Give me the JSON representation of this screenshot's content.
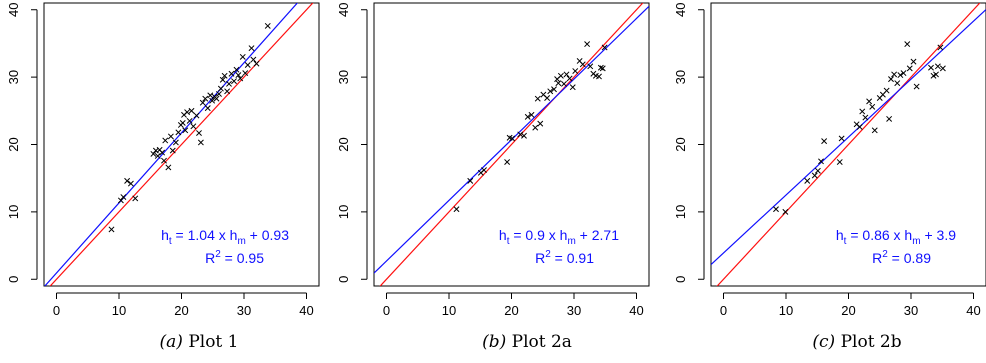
{
  "chart_data": [
    {
      "type": "scatter",
      "caption_label": "(a)",
      "caption_text": "Plot 1",
      "xlim": [
        -2,
        42
      ],
      "ylim": [
        -1,
        41
      ],
      "xticks": [
        0,
        10,
        20,
        30,
        40
      ],
      "yticks": [
        0,
        10,
        20,
        30,
        40
      ],
      "grid": false,
      "marker": "x",
      "points": [
        [
          8.8,
          7.4
        ],
        [
          10.3,
          11.7
        ],
        [
          10.7,
          12.2
        ],
        [
          11.3,
          14.6
        ],
        [
          11.9,
          14.2
        ],
        [
          12.6,
          12.0
        ],
        [
          15.5,
          18.6
        ],
        [
          15.9,
          19.1
        ],
        [
          16.2,
          18.3
        ],
        [
          16.5,
          19.2
        ],
        [
          16.9,
          18.8
        ],
        [
          17.2,
          17.6
        ],
        [
          17.4,
          20.6
        ],
        [
          17.9,
          16.6
        ],
        [
          18.3,
          21.2
        ],
        [
          18.6,
          19.1
        ],
        [
          19.1,
          20.3
        ],
        [
          19.5,
          21.8
        ],
        [
          19.9,
          22.9
        ],
        [
          20.2,
          23.2
        ],
        [
          20.4,
          24.4
        ],
        [
          20.6,
          22.1
        ],
        [
          20.9,
          24.8
        ],
        [
          21.3,
          23.5
        ],
        [
          21.6,
          25.0
        ],
        [
          21.9,
          22.7
        ],
        [
          22.4,
          24.3
        ],
        [
          22.8,
          21.7
        ],
        [
          23.1,
          20.3
        ],
        [
          23.4,
          26.2
        ],
        [
          23.8,
          26.8
        ],
        [
          24.2,
          25.4
        ],
        [
          24.6,
          27.3
        ],
        [
          24.9,
          26.5
        ],
        [
          25.3,
          27.1
        ],
        [
          25.6,
          26.8
        ],
        [
          26.0,
          27.5
        ],
        [
          26.3,
          28.3
        ],
        [
          26.6,
          29.6
        ],
        [
          26.9,
          30.2
        ],
        [
          27.3,
          27.9
        ],
        [
          27.6,
          29.0
        ],
        [
          28.0,
          30.5
        ],
        [
          28.4,
          29.4
        ],
        [
          28.8,
          31.1
        ],
        [
          29.1,
          30.3
        ],
        [
          29.4,
          29.8
        ],
        [
          29.8,
          33.0
        ],
        [
          30.2,
          30.6
        ],
        [
          30.6,
          31.8
        ],
        [
          31.2,
          34.3
        ],
        [
          31.5,
          32.6
        ],
        [
          32.0,
          32.0
        ],
        [
          33.8,
          37.6
        ]
      ],
      "regression": {
        "slope": 1.04,
        "intercept": 0.93
      },
      "identity_line": true,
      "equation": {
        "prefix": "h",
        "sub1": "t",
        "mid": " = 1.04 x h",
        "sub2": "m",
        "suffix": " + 0.93"
      },
      "r2": {
        "label": "R",
        "sup": "2",
        "value": " = 0.95"
      }
    },
    {
      "type": "scatter",
      "caption_label": "(b)",
      "caption_text": "Plot 2a",
      "xlim": [
        -2,
        42
      ],
      "ylim": [
        -1,
        41
      ],
      "xticks": [
        0,
        10,
        20,
        30,
        40
      ],
      "yticks": [
        0,
        10,
        20,
        30,
        40
      ],
      "grid": false,
      "marker": "x",
      "points": [
        [
          11.2,
          10.4
        ],
        [
          13.4,
          14.6
        ],
        [
          15.1,
          15.8
        ],
        [
          15.6,
          16.2
        ],
        [
          19.3,
          17.4
        ],
        [
          19.7,
          21.0
        ],
        [
          20.1,
          20.9
        ],
        [
          21.4,
          21.5
        ],
        [
          22.0,
          21.3
        ],
        [
          22.6,
          24.1
        ],
        [
          23.2,
          24.4
        ],
        [
          23.8,
          22.5
        ],
        [
          24.2,
          26.8
        ],
        [
          24.6,
          23.1
        ],
        [
          25.1,
          27.4
        ],
        [
          25.7,
          26.9
        ],
        [
          26.2,
          27.9
        ],
        [
          26.8,
          28.2
        ],
        [
          27.3,
          29.7
        ],
        [
          27.5,
          29.1
        ],
        [
          27.9,
          30.2
        ],
        [
          28.4,
          29.0
        ],
        [
          28.8,
          30.4
        ],
        [
          29.3,
          29.8
        ],
        [
          29.8,
          28.5
        ],
        [
          30.2,
          30.9
        ],
        [
          30.9,
          32.4
        ],
        [
          31.4,
          31.9
        ],
        [
          32.1,
          34.9
        ],
        [
          32.6,
          31.6
        ],
        [
          33.1,
          30.5
        ],
        [
          33.5,
          30.2
        ],
        [
          34.0,
          30.1
        ],
        [
          34.3,
          31.4
        ],
        [
          34.6,
          31.3
        ],
        [
          34.9,
          34.4
        ]
      ],
      "regression": {
        "slope": 0.9,
        "intercept": 2.71
      },
      "identity_line": true,
      "equation": {
        "prefix": "h",
        "sub1": "t",
        "mid": " = 0.9 x h",
        "sub2": "m",
        "suffix": " + 2.71"
      },
      "r2": {
        "label": "R",
        "sup": "2",
        "value": " = 0.91"
      }
    },
    {
      "type": "scatter",
      "caption_label": "(c)",
      "caption_text": "Plot 2b",
      "xlim": [
        -2,
        42
      ],
      "ylim": [
        -1,
        41
      ],
      "xticks": [
        0,
        10,
        20,
        30,
        40
      ],
      "yticks": [
        0,
        10,
        20,
        30,
        40
      ],
      "grid": false,
      "marker": "x",
      "points": [
        [
          8.4,
          10.4
        ],
        [
          9.9,
          10.0
        ],
        [
          13.4,
          14.6
        ],
        [
          14.6,
          15.4
        ],
        [
          15.1,
          16.1
        ],
        [
          15.6,
          17.5
        ],
        [
          16.1,
          20.5
        ],
        [
          18.6,
          17.4
        ],
        [
          18.9,
          20.9
        ],
        [
          21.3,
          23.0
        ],
        [
          21.8,
          22.6
        ],
        [
          22.2,
          24.9
        ],
        [
          22.7,
          24.0
        ],
        [
          23.3,
          26.4
        ],
        [
          23.8,
          25.6
        ],
        [
          24.2,
          22.1
        ],
        [
          25.0,
          26.9
        ],
        [
          25.5,
          27.4
        ],
        [
          26.1,
          28.0
        ],
        [
          26.5,
          23.8
        ],
        [
          26.8,
          29.7
        ],
        [
          27.3,
          30.4
        ],
        [
          27.8,
          29.1
        ],
        [
          28.3,
          30.3
        ],
        [
          28.8,
          30.6
        ],
        [
          29.4,
          34.9
        ],
        [
          29.8,
          31.3
        ],
        [
          30.4,
          32.3
        ],
        [
          30.9,
          28.6
        ],
        [
          33.2,
          31.4
        ],
        [
          33.6,
          30.2
        ],
        [
          34.0,
          30.4
        ],
        [
          34.3,
          31.6
        ],
        [
          34.7,
          34.4
        ],
        [
          35.1,
          31.3
        ]
      ],
      "regression": {
        "slope": 0.86,
        "intercept": 3.9
      },
      "identity_line": true,
      "equation": {
        "prefix": "h",
        "sub1": "t",
        "mid": " = 0.86 x h",
        "sub2": "m",
        "suffix": " + 3.9"
      },
      "r2": {
        "label": "R",
        "sup": "2",
        "value": " = 0.89"
      }
    }
  ],
  "colors": {
    "regression_line": "#1010ff",
    "identity_line": "#ff1010",
    "equation_text": "#1010ff",
    "points": "#000000",
    "axis": "#000000"
  }
}
